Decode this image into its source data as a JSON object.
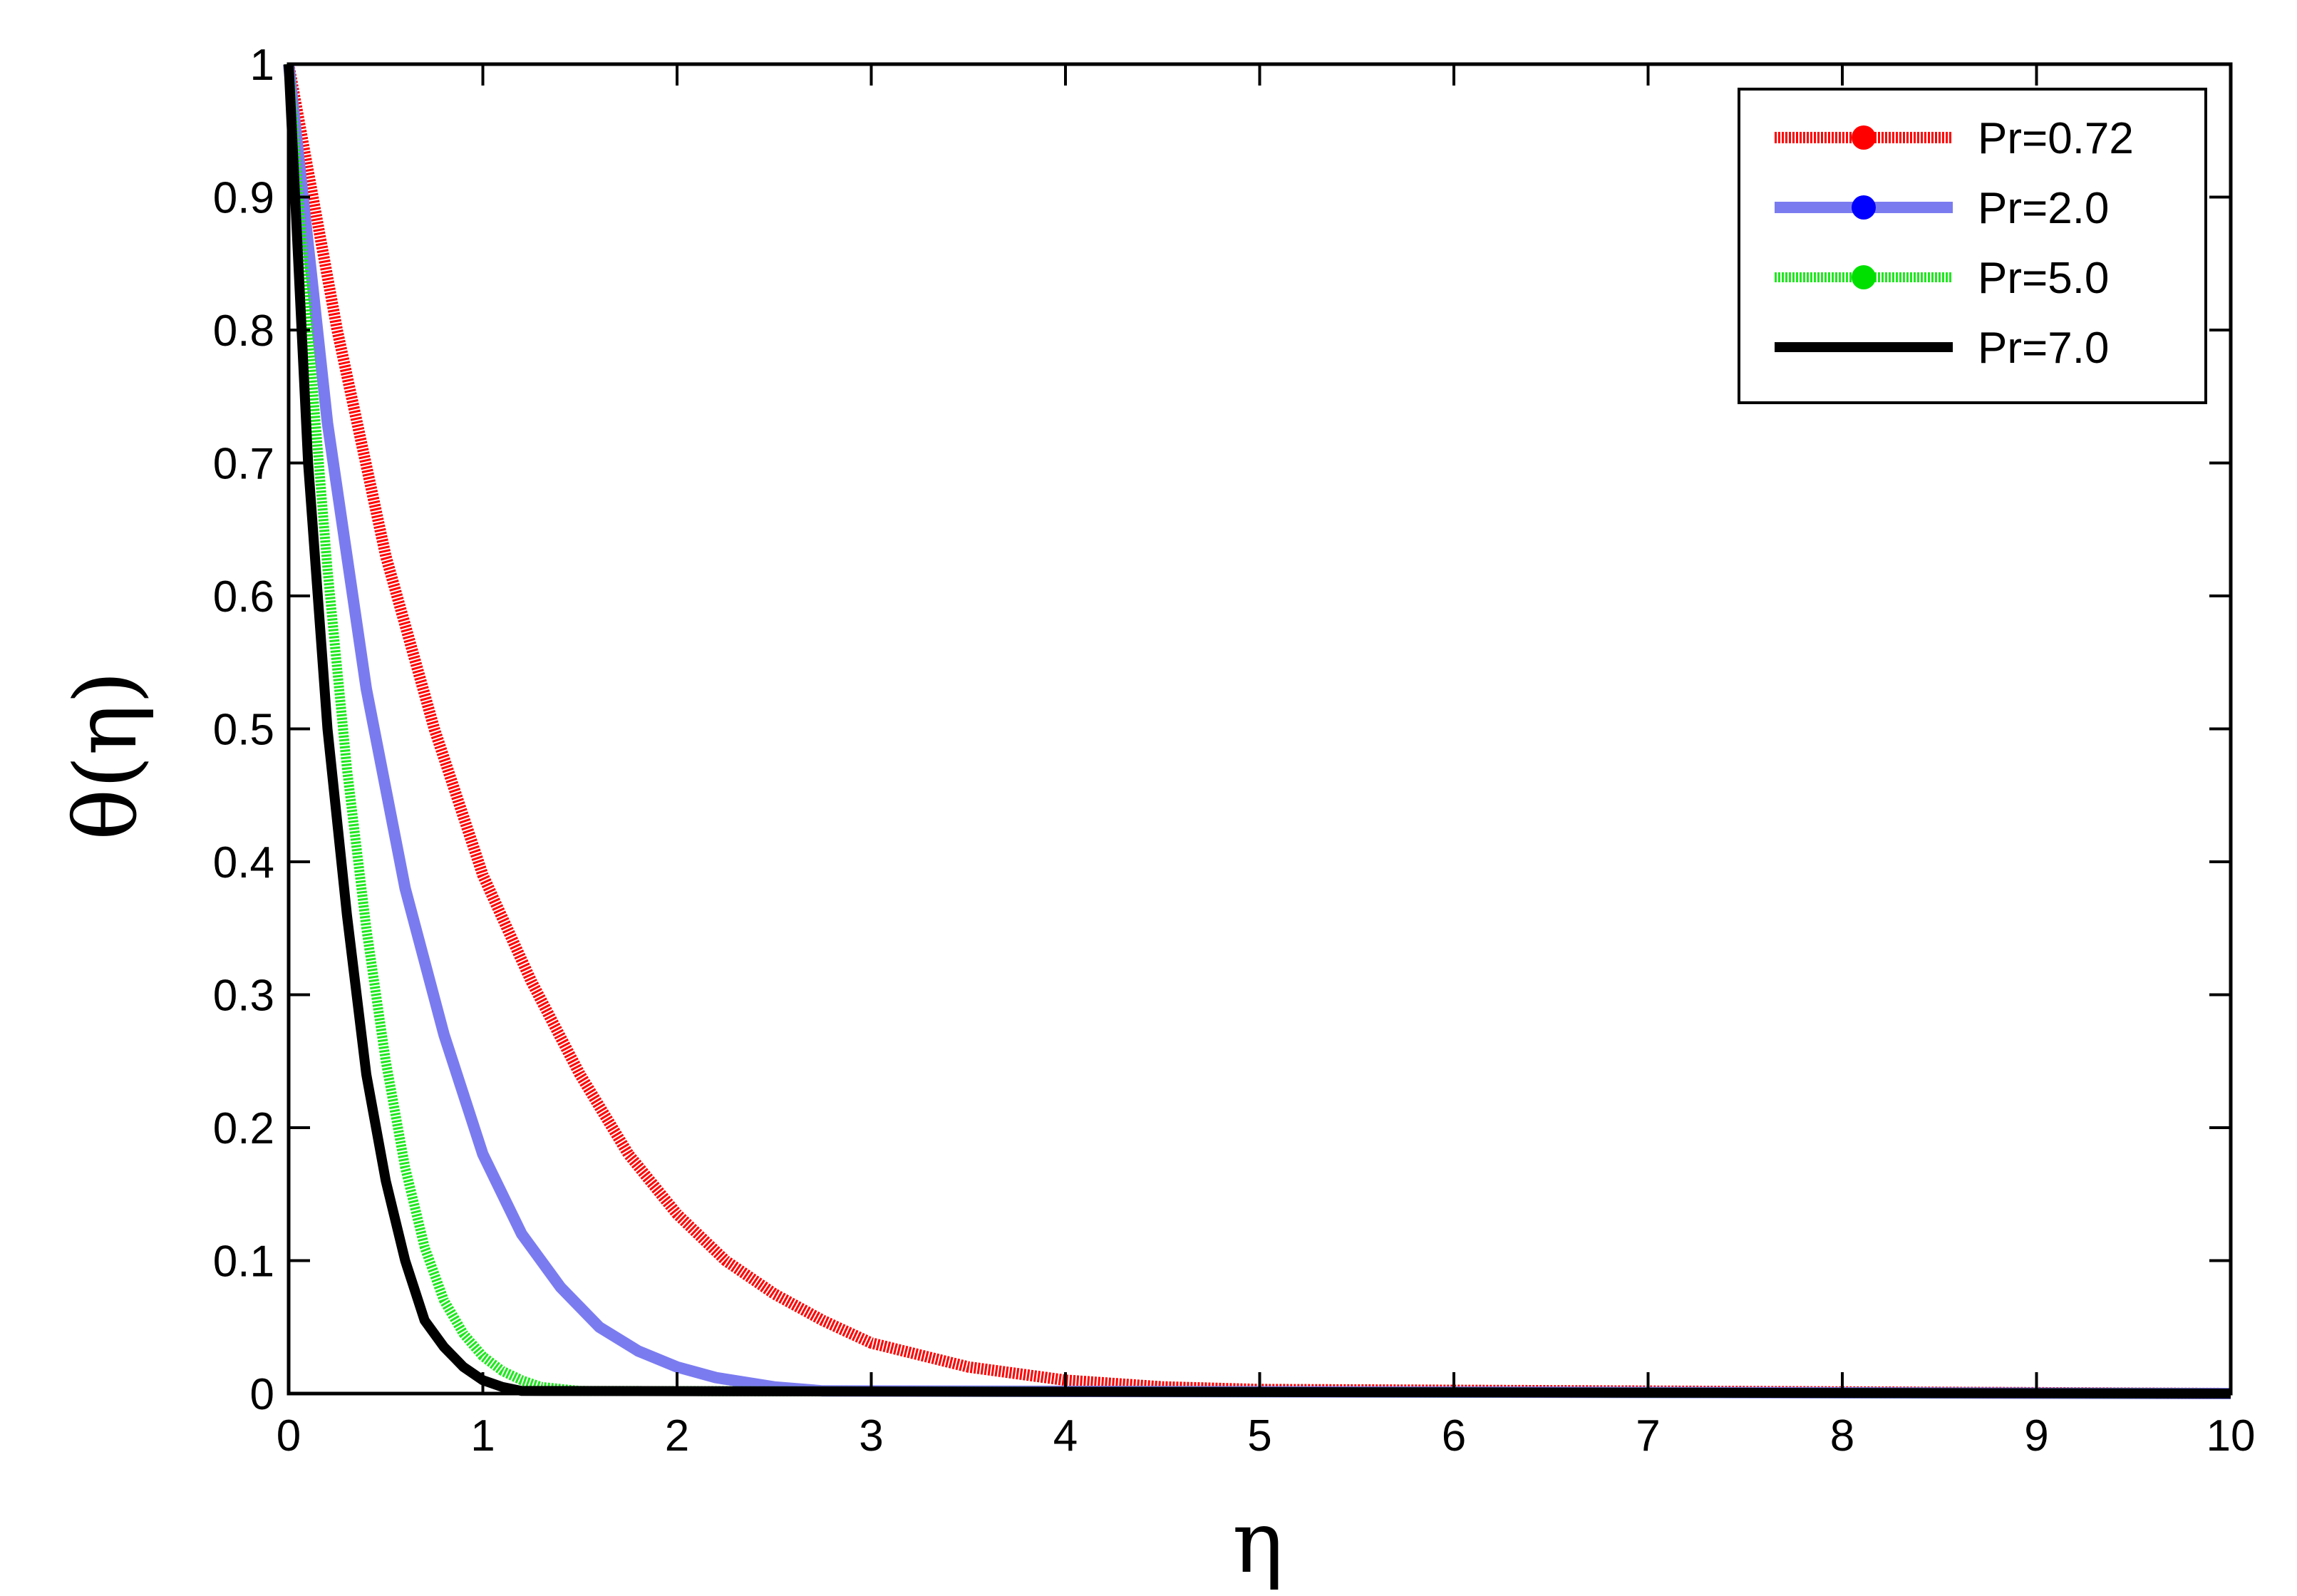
{
  "chart_data": {
    "type": "line",
    "xlabel": "η",
    "ylabel": "θ(η)",
    "xlim": [
      0,
      10
    ],
    "ylim": [
      0,
      1
    ],
    "x_ticks": [
      "0",
      "1",
      "2",
      "3",
      "4",
      "5",
      "6",
      "7",
      "8",
      "9",
      "10"
    ],
    "y_ticks": [
      "0",
      "0.1",
      "0.2",
      "0.3",
      "0.4",
      "0.5",
      "0.6",
      "0.7",
      "0.8",
      "0.9",
      "1"
    ],
    "grid": false,
    "legend_position": "top-right",
    "series": [
      {
        "name": "Pr=0.72",
        "color": "#ff0000",
        "x": [
          0,
          0.25,
          0.5,
          0.75,
          1.0,
          1.25,
          1.5,
          1.75,
          2.0,
          2.25,
          2.5,
          2.75,
          3.0,
          3.5,
          4.0,
          4.5,
          5.0,
          10.0
        ],
        "y": [
          1.0,
          0.8,
          0.63,
          0.5,
          0.39,
          0.31,
          0.24,
          0.18,
          0.135,
          0.1,
          0.075,
          0.055,
          0.038,
          0.02,
          0.01,
          0.005,
          0.003,
          0.0
        ]
      },
      {
        "name": "Pr=2.0",
        "color": "#7b7bf0",
        "x": [
          0,
          0.2,
          0.4,
          0.6,
          0.8,
          1.0,
          1.2,
          1.4,
          1.6,
          1.8,
          2.0,
          2.2,
          2.5,
          2.75,
          10.0
        ],
        "y": [
          1.0,
          0.73,
          0.53,
          0.38,
          0.27,
          0.18,
          0.12,
          0.08,
          0.05,
          0.032,
          0.02,
          0.012,
          0.005,
          0.002,
          0.0
        ]
      },
      {
        "name": "Pr=5.0",
        "color": "#1ee81e",
        "x": [
          0,
          0.1,
          0.2,
          0.3,
          0.4,
          0.5,
          0.6,
          0.7,
          0.8,
          0.9,
          1.0,
          1.1,
          1.2,
          1.3,
          1.5,
          10.0
        ],
        "y": [
          1.0,
          0.8,
          0.62,
          0.47,
          0.35,
          0.25,
          0.17,
          0.11,
          0.07,
          0.045,
          0.028,
          0.017,
          0.01,
          0.005,
          0.002,
          0.0
        ]
      },
      {
        "name": "Pr=7.0",
        "color": "#000000",
        "x": [
          0,
          0.1,
          0.2,
          0.3,
          0.4,
          0.5,
          0.6,
          0.7,
          0.8,
          0.9,
          1.0,
          1.1,
          1.2,
          10.0
        ],
        "y": [
          1.0,
          0.7,
          0.5,
          0.36,
          0.24,
          0.16,
          0.1,
          0.055,
          0.035,
          0.02,
          0.01,
          0.005,
          0.002,
          0.0
        ]
      }
    ]
  }
}
